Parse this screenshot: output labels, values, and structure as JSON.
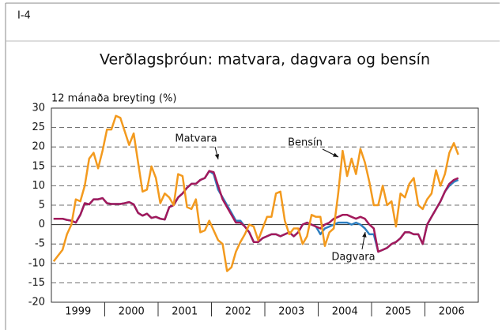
{
  "chart_data": {
    "type": "line",
    "figure_id": "I-4",
    "title": "Verðlagsþróun: matvara, dagvara og bensín",
    "y_label": "12 mánaða breyting (%)",
    "categories": [
      null,
      null,
      null,
      null,
      null,
      null,
      "1999",
      null,
      null,
      null,
      null,
      null,
      null,
      null,
      null,
      null,
      null,
      null,
      "2000",
      null,
      null,
      null,
      null,
      null,
      null,
      null,
      null,
      null,
      null,
      null,
      "2001",
      null,
      null,
      null,
      null,
      null,
      null,
      null,
      null,
      null,
      null,
      null,
      "2002",
      null,
      null,
      null,
      null,
      null,
      null,
      null,
      null,
      null,
      null,
      null,
      "2003",
      null,
      null,
      null,
      null,
      null,
      null,
      null,
      null,
      null,
      null,
      null,
      "2004",
      null,
      null,
      null,
      null,
      null,
      null,
      null,
      null,
      null,
      null,
      null,
      "2005",
      null,
      null,
      null,
      null,
      null,
      null,
      null,
      null,
      null,
      null,
      null,
      "2006",
      null
    ],
    "ylim": [
      -20,
      30
    ],
    "yticks": [
      -20,
      -15,
      -10,
      -5,
      0,
      5,
      10,
      15,
      20,
      25,
      30
    ],
    "grid": true,
    "series": [
      {
        "name": "Bensín",
        "color": "#f39a1e",
        "values": [
          -9.5,
          -8,
          -6.5,
          -2.5,
          0,
          6.5,
          6,
          10,
          17,
          18.5,
          14.5,
          19,
          24.5,
          24.5,
          28,
          27.5,
          24,
          20.5,
          23.5,
          16,
          8.5,
          9,
          15,
          12,
          5.5,
          8,
          7,
          5,
          13,
          12.5,
          4.5,
          4,
          6.5,
          -2,
          -1.5,
          1,
          -1.5,
          -4,
          -5,
          -12,
          -11,
          -7,
          -4.5,
          -2.5,
          0,
          -0.5,
          -4,
          -1,
          2,
          2,
          8,
          8.5,
          1,
          -2.5,
          -1,
          -1,
          -5,
          -3,
          2.5,
          2,
          2,
          -5.5,
          -2,
          -1,
          8,
          19,
          12.5,
          17,
          13,
          19.5,
          16,
          11,
          5,
          5,
          10,
          5,
          6,
          -0.5,
          8,
          7,
          10.5,
          12,
          5,
          4,
          6.5,
          8,
          14,
          10,
          13,
          18.5,
          21,
          18
        ]
      },
      {
        "name": "Matvara",
        "color": "#a3195b",
        "values": [
          1.5,
          1.5,
          1.5,
          1.2,
          1,
          0.5,
          2.5,
          5.5,
          5.2,
          6.5,
          6.5,
          6.8,
          5.5,
          5.3,
          5.3,
          5.3,
          5.5,
          5.8,
          5.2,
          3,
          2.3,
          2.8,
          1.7,
          2,
          1.5,
          1.3,
          4.5,
          5,
          7,
          8,
          9.5,
          10.5,
          10.5,
          11.5,
          12,
          13.8,
          13.5,
          10,
          6.5,
          4.5,
          2.5,
          0.5,
          0.5,
          -0.5,
          -2,
          -4.5,
          -4.5,
          -3.5,
          -3,
          -2.5,
          -2.5,
          -3,
          -2.5,
          -2,
          -3,
          -2,
          0,
          0.5,
          0,
          -0.5,
          -1,
          0,
          0.5,
          1.5,
          2,
          2.5,
          2.5,
          2,
          1.5,
          2,
          1.5,
          0,
          -1,
          -7,
          -6.5,
          -6,
          -5,
          -4.5,
          -3.5,
          -2,
          -2,
          -2.5,
          -2.5,
          -5,
          0,
          2,
          4,
          6,
          8.5,
          10.5,
          11.5,
          12
        ]
      },
      {
        "name": "Dagvara",
        "color": "#2e7fc1",
        "values": [
          1.5,
          1.5,
          1.5,
          1.2,
          1,
          0.5,
          2.5,
          5.5,
          5.2,
          6.5,
          6.5,
          6.8,
          5.5,
          5.3,
          5.3,
          5.3,
          5.5,
          5.8,
          5.2,
          3,
          2.3,
          2.8,
          1.7,
          2,
          1.5,
          1.3,
          4.5,
          5,
          7,
          8,
          9.5,
          10.5,
          10.5,
          11.5,
          12,
          13.8,
          13,
          9,
          7,
          5,
          3,
          1,
          1,
          -0.5,
          -2,
          -4.5,
          -4.5,
          -3.5,
          -3,
          -2.5,
          -2.5,
          -3,
          -2.5,
          -2,
          -3,
          -2,
          0,
          0.5,
          0,
          -0.5,
          -2.5,
          -1,
          -0.5,
          0,
          0.5,
          0.5,
          0.5,
          0,
          0.5,
          0,
          -1,
          -2.5,
          -2.5,
          -7,
          -6.5,
          -6,
          -5,
          -4.5,
          -3.5,
          -2,
          -2,
          -2.5,
          -2.5,
          -5,
          0,
          2,
          4,
          6,
          8.5,
          10,
          11,
          11.5
        ]
      }
    ],
    "draw_order": [
      2,
      1,
      0
    ]
  }
}
